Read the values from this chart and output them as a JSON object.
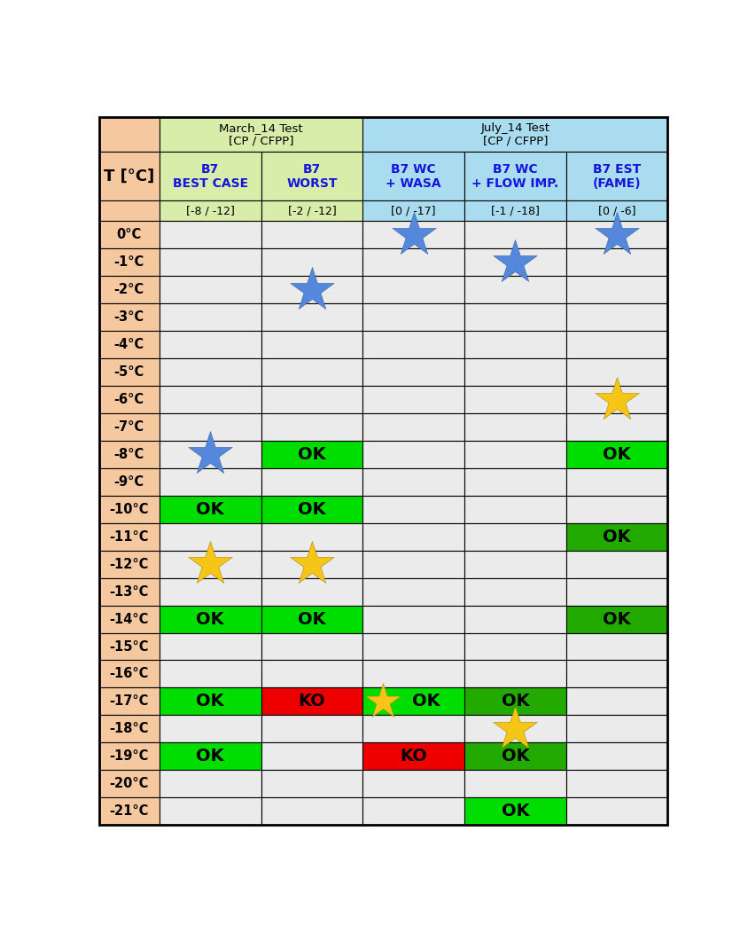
{
  "title_left": "March_14 Test\n[CP / CFPP]",
  "title_right": "July_14 Test\n[CP / CFPP]",
  "col_headers": [
    "B7\nBEST CASE",
    "B7\nWORST",
    "B7 WC\n+ WASA",
    "B7 WC\n+ FLOW IMP.",
    "B7 EST\n(FAME)"
  ],
  "col_subheaders": [
    "[-8 / -12]",
    "[-2 / -12]",
    "[0 / -17]",
    "[-1 / -18]",
    "[0 / -6]"
  ],
  "row_labels": [
    "0°C",
    "-1°C",
    "-2°C",
    "-3°C",
    "-4°C",
    "-5°C",
    "-6°C",
    "-7°C",
    "-8°C",
    "-9°C",
    "-10°C",
    "-11°C",
    "-12°C",
    "-13°C",
    "-14°C",
    "-15°C",
    "-16°C",
    "-17°C",
    "-18°C",
    "-19°C",
    "-20°C",
    "-21°C"
  ],
  "n_rows": 22,
  "n_cols": 5,
  "header_bg_left": "#d9edaa",
  "header_bg_right": "#aadcf0",
  "row_label_bg": "#f5c8a0",
  "cell_bg_default": "#ebebeb",
  "green_bright": "#00dd00",
  "green_dark": "#22aa00",
  "red_bg": "#ee0000",
  "header_text_color": "#1515dd",
  "cells": {
    "0,2": {
      "type": "blue_star"
    },
    "0,4": {
      "type": "blue_star"
    },
    "1,3": {
      "type": "blue_star"
    },
    "2,1": {
      "type": "blue_star"
    },
    "6,4": {
      "type": "gold_star"
    },
    "8,0": {
      "type": "blue_star"
    },
    "8,1": {
      "type": "ok",
      "bg": "#00dd00"
    },
    "8,4": {
      "type": "ok",
      "bg": "#00dd00"
    },
    "10,0": {
      "type": "ok",
      "bg": "#00dd00"
    },
    "10,1": {
      "type": "ok",
      "bg": "#00dd00"
    },
    "11,4": {
      "type": "ok",
      "bg": "#22aa00"
    },
    "12,0": {
      "type": "gold_star"
    },
    "12,1": {
      "type": "gold_star"
    },
    "14,0": {
      "type": "ok",
      "bg": "#00dd00"
    },
    "14,1": {
      "type": "ok",
      "bg": "#00dd00"
    },
    "14,4": {
      "type": "ok",
      "bg": "#22aa00"
    },
    "17,0": {
      "type": "ok",
      "bg": "#00dd00"
    },
    "17,1": {
      "type": "ko",
      "bg": "#ee0000"
    },
    "17,2": {
      "type": "ok_star",
      "bg": "#00dd00"
    },
    "17,3": {
      "type": "ok",
      "bg": "#22aa00"
    },
    "18,3": {
      "type": "gold_star"
    },
    "19,0": {
      "type": "ok",
      "bg": "#00dd00"
    },
    "19,2": {
      "type": "ko",
      "bg": "#ee0000"
    },
    "19,3": {
      "type": "ok",
      "bg": "#22aa00"
    },
    "21,3": {
      "type": "ok",
      "bg": "#00dd00"
    }
  },
  "T_label": "T [°C]"
}
